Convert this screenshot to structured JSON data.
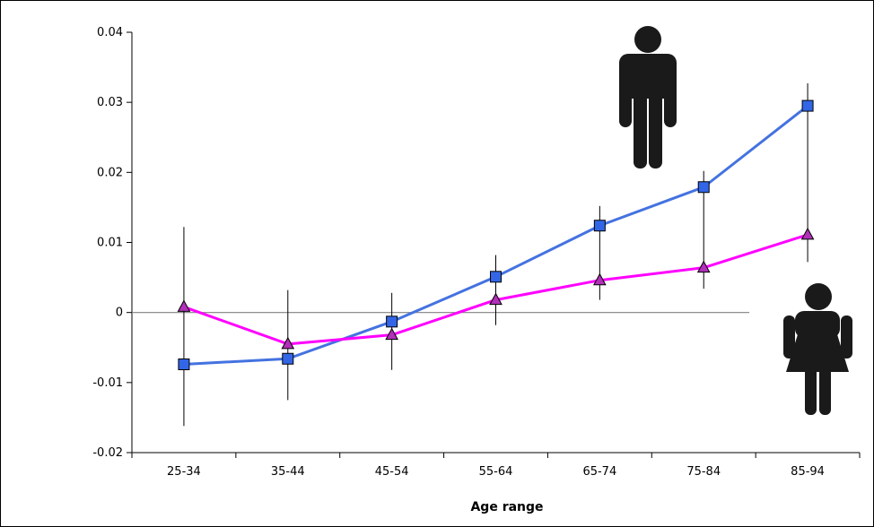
{
  "chart_data": {
    "type": "line",
    "title": "",
    "xlabel": "Age range",
    "ylabel": "",
    "categories": [
      "25-34",
      "35-44",
      "45-54",
      "55-64",
      "65-74",
      "75-84",
      "85-94"
    ],
    "ylim": [
      -0.02,
      0.04
    ],
    "yticks": [
      -0.02,
      -0.01,
      0,
      0.01,
      0.02,
      0.03,
      0.04
    ],
    "ytick_labels": [
      "-0.02",
      "-0.01",
      "0",
      "0.01",
      "0.02",
      "0.03",
      "0.04"
    ],
    "legend": "none",
    "grid": false,
    "series": [
      {
        "marker": "square",
        "color": "#4472E0",
        "marker_fill": "#3366E6",
        "values": [
          -0.0074,
          -0.0066,
          -0.0013,
          0.0051,
          0.0124,
          0.0179,
          0.0295
        ],
        "err_low": [
          -0.0162,
          -0.0125,
          -0.0082,
          -0.0018,
          0.0018,
          0.0034,
          0.0072
        ],
        "err_high": [
          0.0122,
          0.0032,
          0.0028,
          0.0082,
          0.0152,
          0.0202,
          0.0327
        ]
      },
      {
        "marker": "triangle",
        "color": "#FF00FF",
        "marker_fill": "#B030B8",
        "values": [
          0.0008,
          -0.0045,
          -0.0032,
          0.0018,
          0.0046,
          0.0064,
          0.0111
        ],
        "err_low": [
          -0.0162,
          -0.0125,
          -0.0082,
          -0.0018,
          0.0018,
          0.0034,
          0.0072
        ],
        "err_high": [
          0.0122,
          0.0032,
          0.0028,
          0.0082,
          0.0152,
          0.0202,
          0.0327
        ]
      }
    ]
  },
  "icons": {
    "male": "male-figure-icon",
    "female": "female-figure-icon",
    "icon_color": "#1a1a1a"
  }
}
